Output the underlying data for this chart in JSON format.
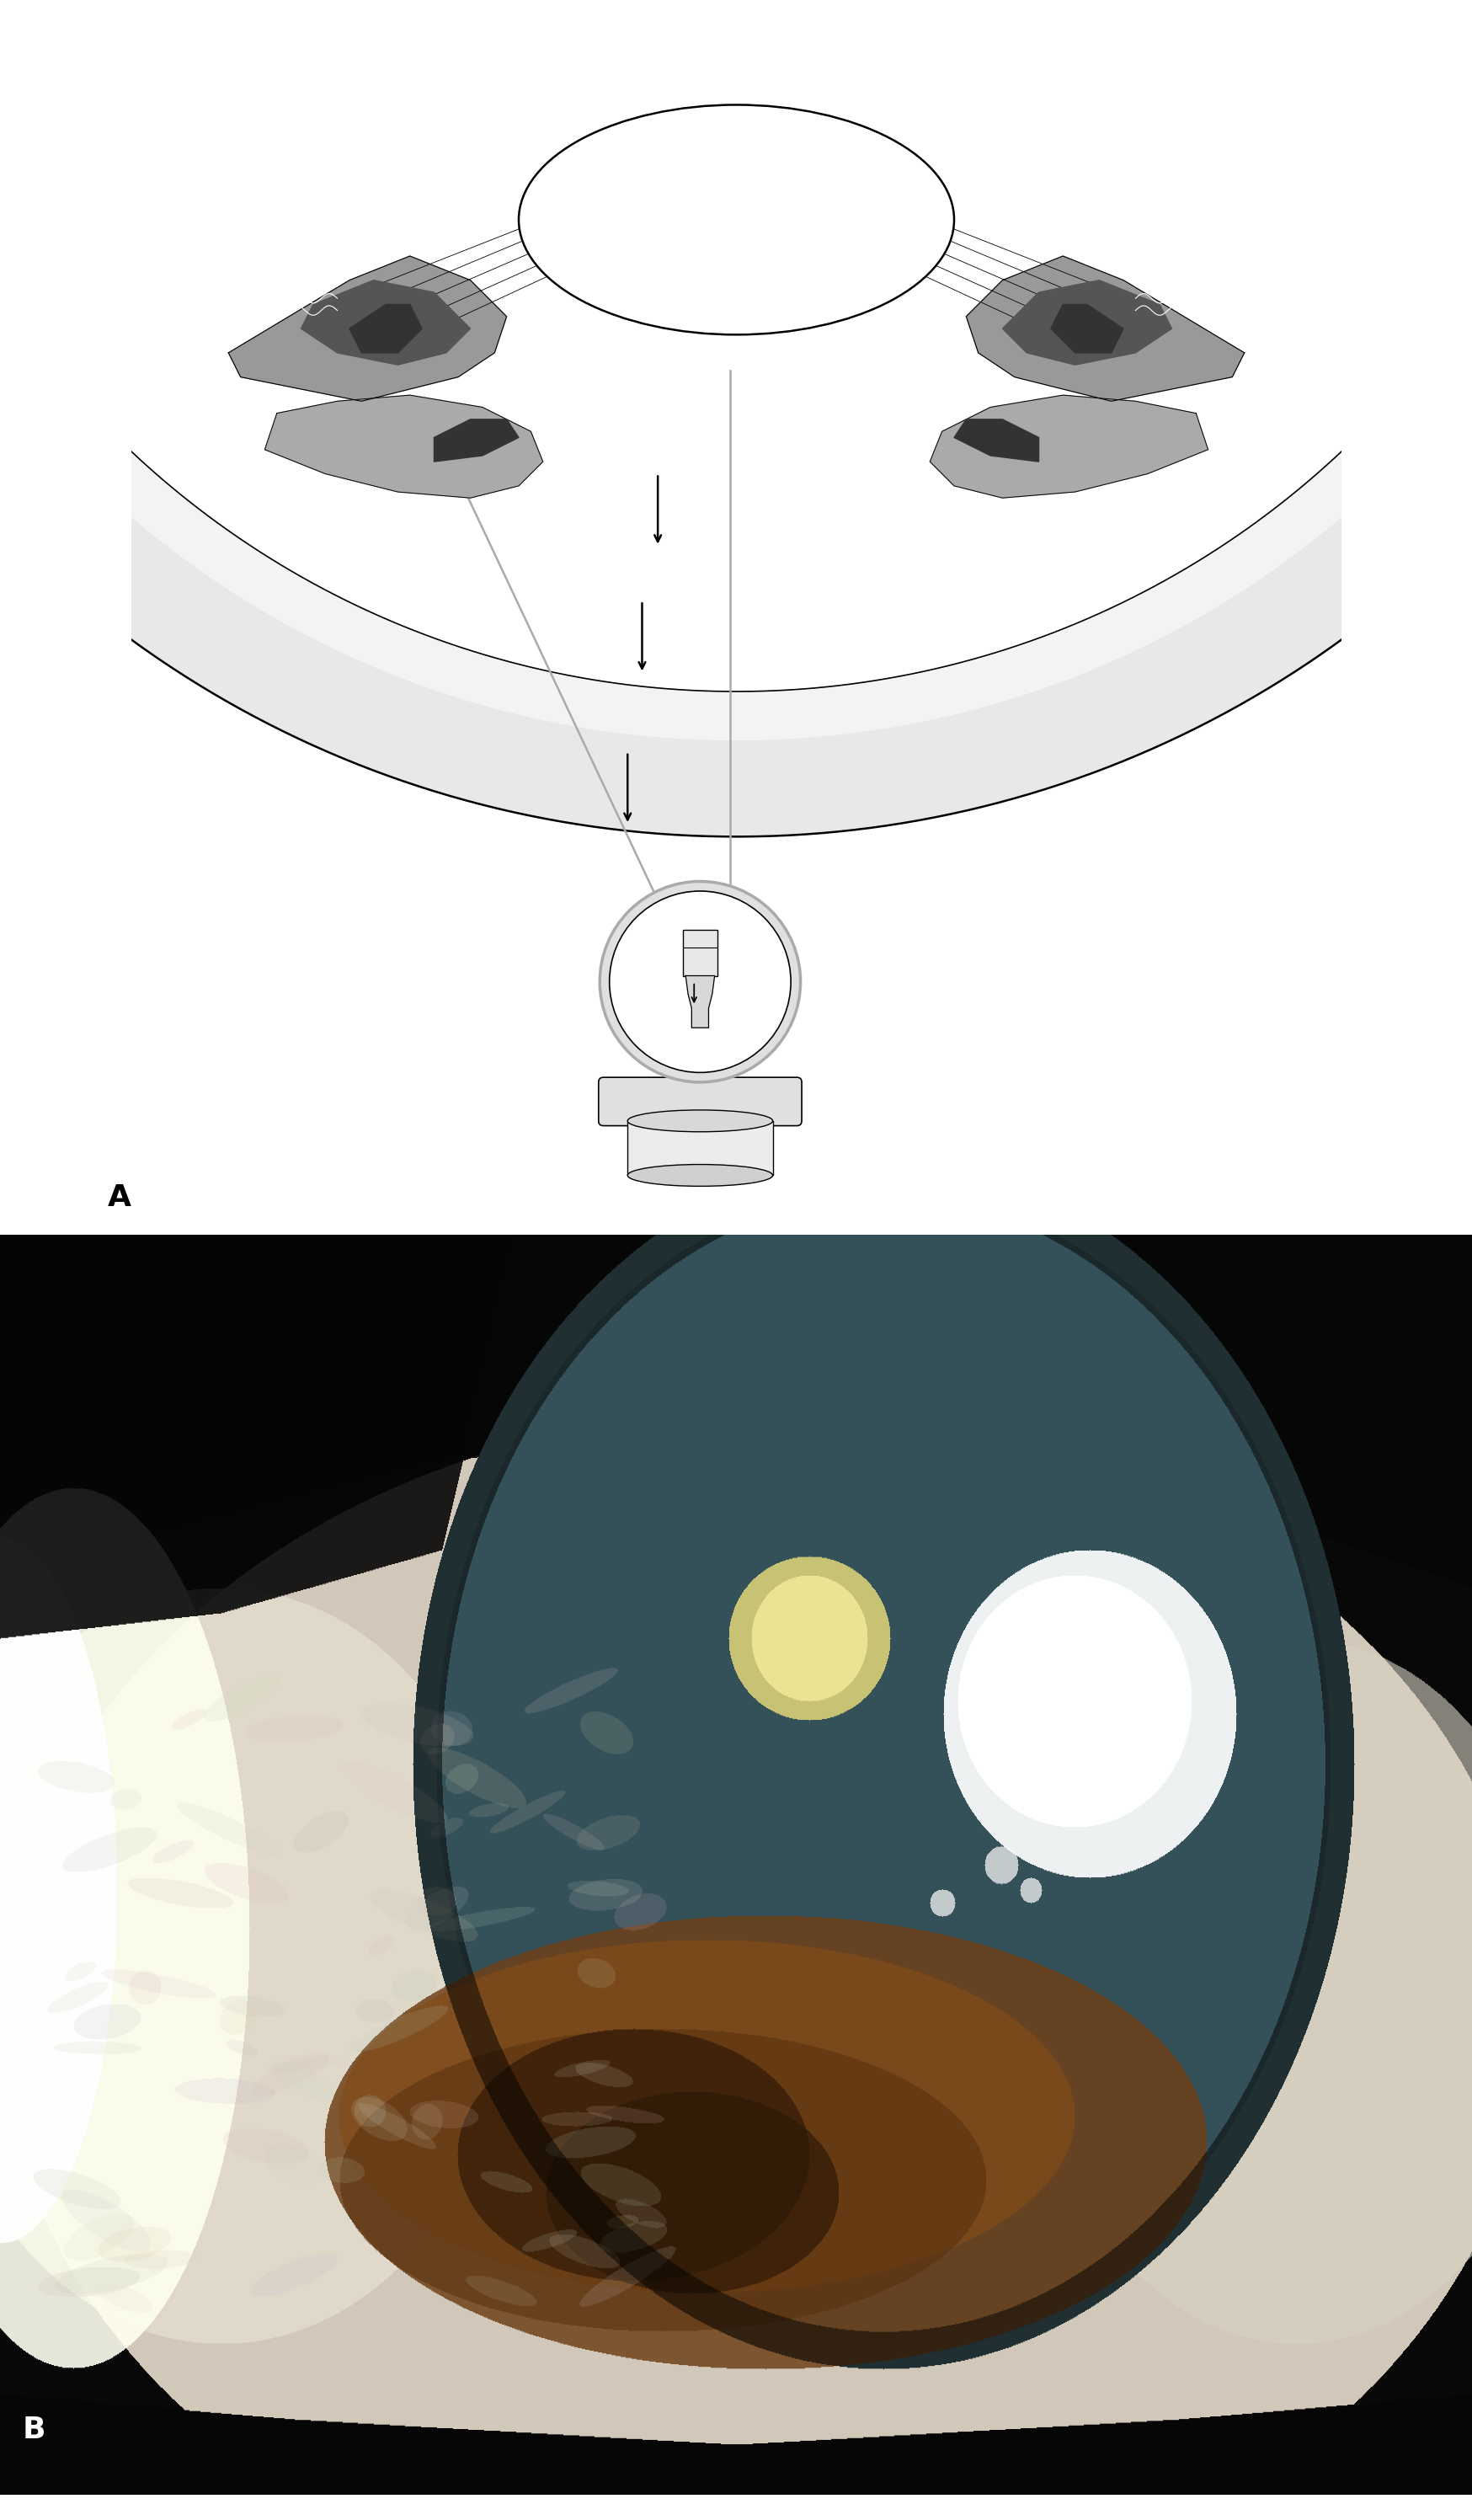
{
  "fig_width": 17.49,
  "fig_height": 29.92,
  "panel_A_label": "A",
  "panel_B_label": "B",
  "background_color": "#ffffff",
  "gray_light": "#e0e0e0",
  "gray_mid": "#aaaaaa",
  "gray_dark": "#777777",
  "gray_anat": "#999999",
  "dark_anat": "#555555",
  "very_dark": "#333333",
  "arrow_color": "#000000",
  "line_color": "#000000",
  "cornea_fill": "#e8e8e8",
  "lens_fill": "#ffffff",
  "highlight_fill": "#d0d0d0"
}
